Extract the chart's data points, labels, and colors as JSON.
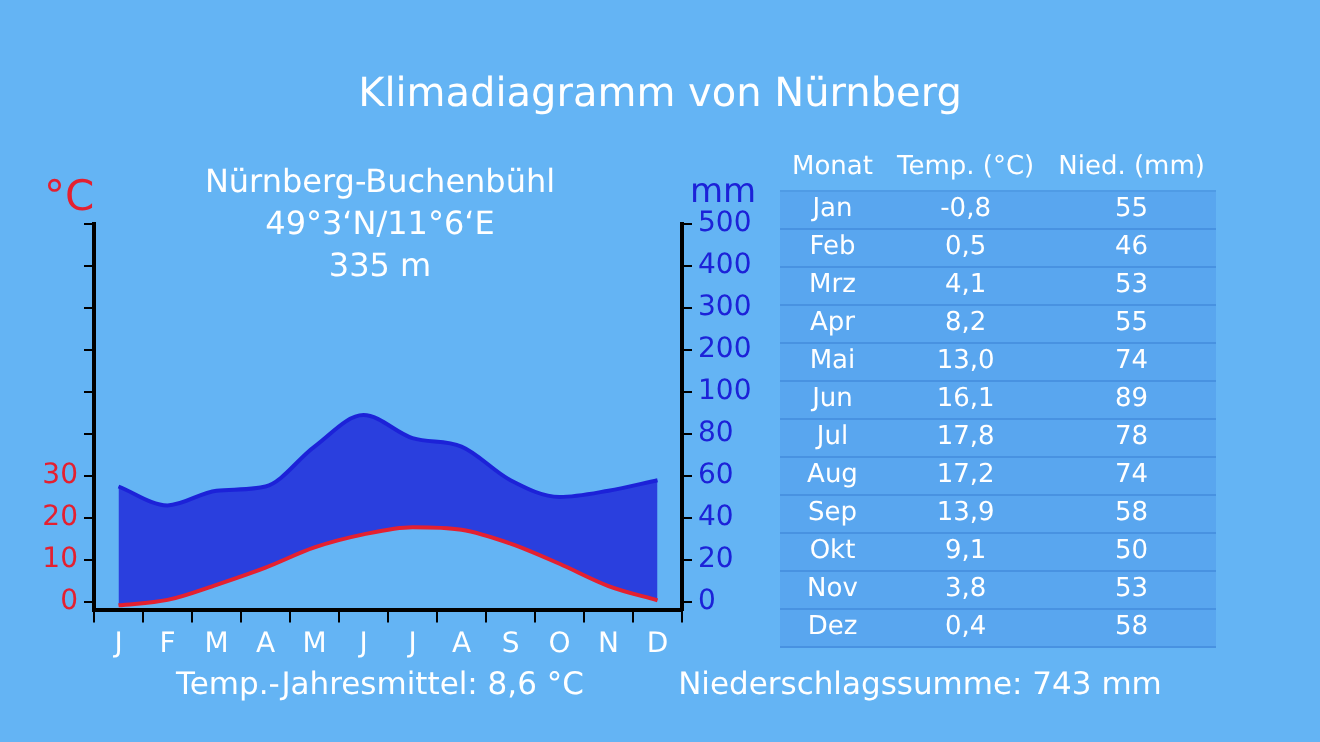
{
  "chart_data": [
    {
      "type": "line",
      "title": "Klimadiagramm von Nürnberg",
      "ylabel": "°C",
      "y2label": "mm",
      "categories": [
        "J",
        "F",
        "M",
        "A",
        "M",
        "J",
        "J",
        "A",
        "S",
        "O",
        "N",
        "D"
      ],
      "series": [
        {
          "type": "line",
          "color": "#e42030",
          "values": [
            -0.8,
            0.5,
            4.1,
            8.2,
            13.0,
            16.1,
            17.8,
            17.2,
            13.9,
            9.1,
            3.8,
            0.4
          ]
        },
        {
          "type": "area",
          "axis": "y2",
          "color": "#1c22d8",
          "values": [
            55,
            46,
            53,
            55,
            74,
            89,
            78,
            74,
            58,
            50,
            53,
            58
          ]
        }
      ],
      "ylim": [
        -2,
        90
      ],
      "yticks": [
        0,
        10,
        20,
        30,
        {
          "value": 40,
          "label": null
        },
        {
          "value": 50,
          "label": null
        },
        {
          "value": 60,
          "label": null
        },
        {
          "value": 70,
          "label": null
        },
        {
          "value": 80,
          "label": null
        },
        {
          "value": 90,
          "label": null
        }
      ],
      "y2lim": [
        -4,
        180
      ],
      "y2ticks": [
        0,
        20,
        40,
        60,
        80,
        100
      ],
      "y3lim": [
        -420,
        500
      ],
      "y3ticks": [
        200,
        300,
        400,
        500
      ],
      "grid": false,
      "legend": false,
      "marker": "none",
      "line_style": "solid",
      "annotations": [
        "Nürnberg-Buchenbühl",
        "49°3‘N/11°6‘E",
        "335 m",
        "Temp.-Jahresmittel: 8,6 °C",
        "Niederschlagssumme: 743 mm"
      ]
    },
    {
      "type": "other",
      "xlabel": "Monat",
      "categories": [
        "Jan",
        "Feb",
        "Mrz",
        "Apr",
        "Mai",
        "Jun",
        "Jul",
        "Aug",
        "Sep",
        "Okt",
        "Nov",
        "Dez"
      ],
      "series": [
        {
          "name": "Temp. (°C)",
          "values": [
            -0.8,
            0.5,
            4.1,
            8.2,
            13.0,
            16.1,
            17.8,
            17.2,
            13.9,
            9.1,
            3.8,
            0.4
          ],
          "value_labels": [
            "-0,8",
            "0,5",
            "4,1",
            "8,2",
            "13,0",
            "16,1",
            "17,8",
            "17,2",
            "13,9",
            "9,1",
            "3,8",
            "0,4"
          ]
        },
        {
          "name": "Nied. (mm)",
          "values": [
            55,
            46,
            53,
            55,
            74,
            89,
            78,
            74,
            58,
            50,
            53,
            58
          ],
          "value_labels": [
            "55",
            "46",
            "53",
            "55",
            "74",
            "89",
            "78",
            "74",
            "58",
            "50",
            "53",
            "58"
          ]
        }
      ]
    }
  ]
}
